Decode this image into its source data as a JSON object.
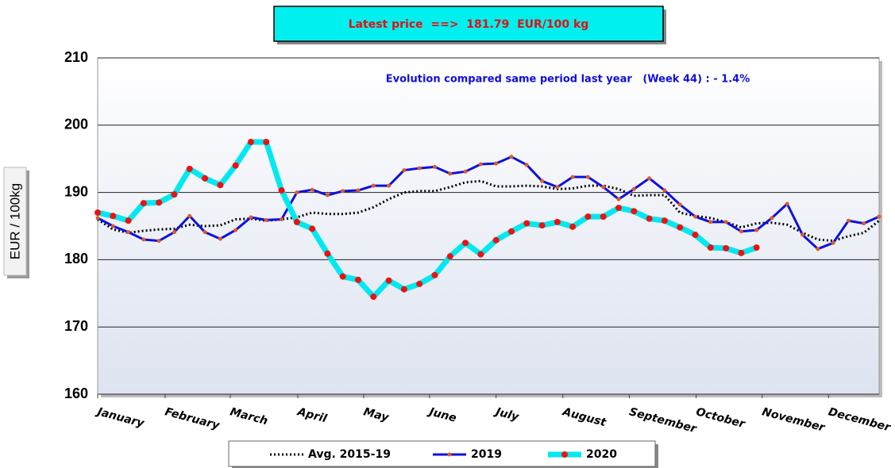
{
  "chart_data": {
    "type": "line",
    "header": "Latest price  ==>  181.79  EUR/100 kg",
    "annotation": "Evolution compared same period last year   (Week 44) : - 1.4%",
    "y_label": "EUR / 100kg",
    "x": [
      1,
      2,
      3,
      4,
      5,
      6,
      7,
      8,
      9,
      10,
      11,
      12,
      13,
      14,
      15,
      16,
      17,
      18,
      19,
      20,
      21,
      22,
      23,
      24,
      25,
      26,
      27,
      28,
      29,
      30,
      31,
      32,
      33,
      34,
      35,
      36,
      37,
      38,
      39,
      40,
      41,
      42,
      43,
      44,
      45,
      46,
      47,
      48,
      49,
      50,
      51,
      52
    ],
    "xlim": [
      1,
      52
    ],
    "xticks": [
      {
        "value": 1,
        "label": "January"
      },
      {
        "value": 5.4,
        "label": "February"
      },
      {
        "value": 9.65,
        "label": "March"
      },
      {
        "value": 14.06,
        "label": "April"
      },
      {
        "value": 18.36,
        "label": "May"
      },
      {
        "value": 22.66,
        "label": "June"
      },
      {
        "value": 27,
        "label": "July"
      },
      {
        "value": 31.36,
        "label": "August"
      },
      {
        "value": 35.7,
        "label": "September"
      },
      {
        "value": 40.06,
        "label": "October"
      },
      {
        "value": 44.37,
        "label": "November"
      },
      {
        "value": 48.7,
        "label": "December"
      }
    ],
    "ylim": [
      160,
      210
    ],
    "yticks": [
      160,
      170,
      180,
      190,
      200,
      210
    ],
    "grid": true,
    "series": [
      {
        "name": "Avg. 2015-19",
        "color": "#000000",
        "linestyle": "dotted",
        "values": [
          186.0,
          184.5,
          184.0,
          184.3,
          184.5,
          184.6,
          185.2,
          185.0,
          185.1,
          186.0,
          186.1,
          185.8,
          186.0,
          186.3,
          187.0,
          186.8,
          186.8,
          187.0,
          187.8,
          189.0,
          190.0,
          190.2,
          190.2,
          190.8,
          191.5,
          191.7,
          190.9,
          190.9,
          191.0,
          190.9,
          190.5,
          190.6,
          191.0,
          191.0,
          190.5,
          189.5,
          189.6,
          189.6,
          187.0,
          186.5,
          186.2,
          185.6,
          184.8,
          185.4,
          185.5,
          185.2,
          184.0,
          183.0,
          182.8,
          183.5,
          184.0,
          185.8
        ]
      },
      {
        "name": "2019",
        "color": "#1010dd",
        "linestyle": "solid",
        "marker_color": "#e05a28",
        "values": [
          186.2,
          185.0,
          184.1,
          183.0,
          182.8,
          184.1,
          186.5,
          184.1,
          183.1,
          184.4,
          186.3,
          185.9,
          186.0,
          190.0,
          190.4,
          189.6,
          190.2,
          190.3,
          191.0,
          191.0,
          193.3,
          193.6,
          193.8,
          192.8,
          193.1,
          194.2,
          194.3,
          195.3,
          194.1,
          191.7,
          190.8,
          192.3,
          192.3,
          190.8,
          189.0,
          190.5,
          192.1,
          190.3,
          188.2,
          186.4,
          185.6,
          185.6,
          184.2,
          184.4,
          186.2,
          188.3,
          183.7,
          181.6,
          182.5,
          185.8,
          185.4,
          186.4
        ]
      },
      {
        "name": "2020",
        "color": "#00e8f0",
        "linestyle": "solid",
        "marker_color": "#ee1111",
        "values": [
          187.0,
          186.5,
          185.8,
          188.4,
          188.5,
          189.7,
          193.5,
          192.1,
          191.1,
          194.0,
          197.5,
          197.5,
          190.3,
          185.6,
          184.6,
          180.9,
          177.5,
          177.0,
          174.5,
          176.9,
          175.6,
          176.4,
          177.7,
          180.5,
          182.5,
          180.8,
          182.9,
          184.2,
          185.4,
          185.1,
          185.6,
          184.9,
          186.4,
          186.4,
          187.7,
          187.2,
          186.1,
          185.8,
          184.8,
          183.7,
          181.8,
          181.7,
          181.0,
          181.8,
          null,
          null,
          null,
          null,
          null,
          null,
          null,
          null
        ]
      }
    ]
  }
}
